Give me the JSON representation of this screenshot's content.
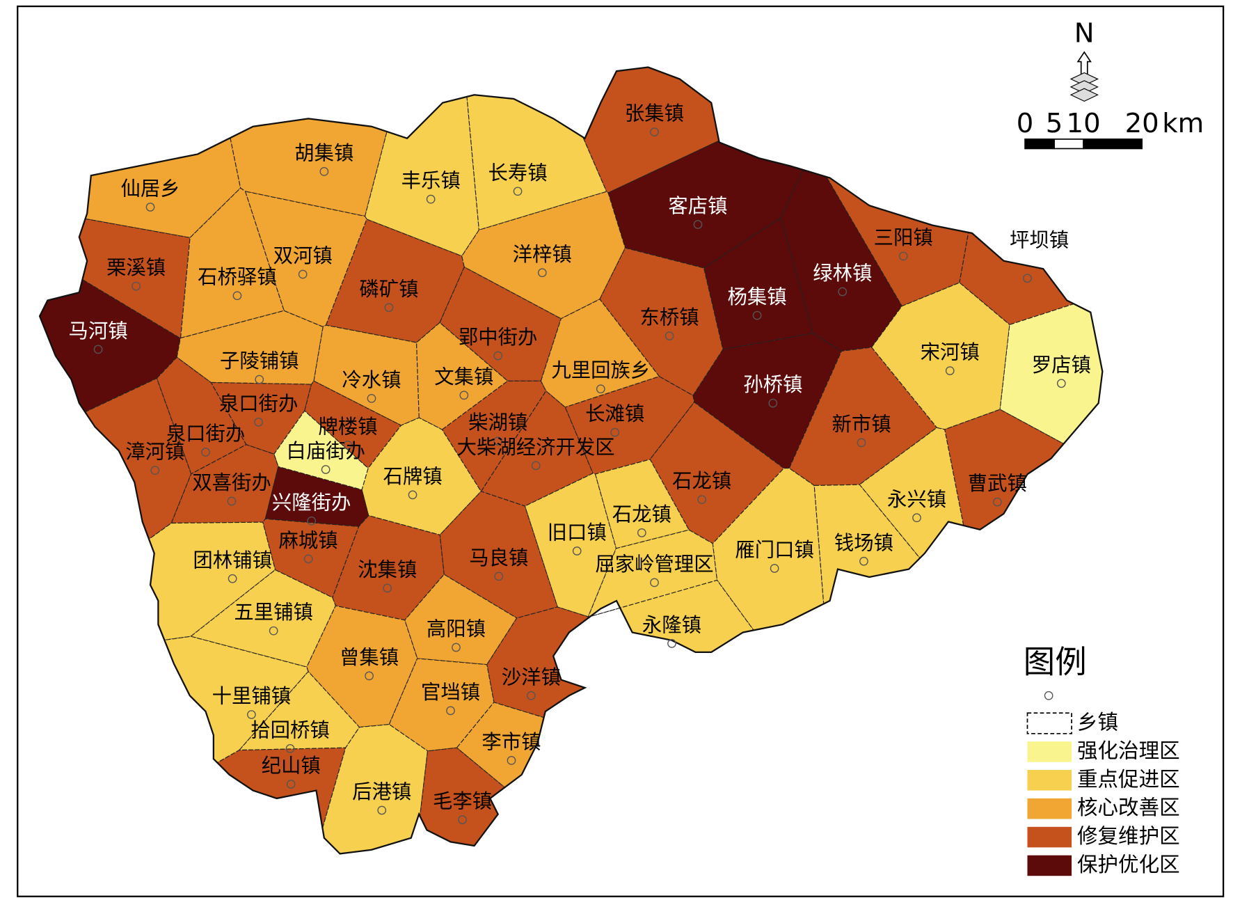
{
  "towns": [
    {
      "name": "仙居乡",
      "zone": "核心改善区"
    },
    {
      "name": "胡集镇",
      "zone": "核心改善区"
    },
    {
      "name": "丰乐镇",
      "zone": "重点促进区"
    },
    {
      "name": "长寿镇",
      "zone": "重点促进区"
    },
    {
      "name": "张集镇",
      "zone": "修复维护区"
    },
    {
      "name": "客店镇",
      "zone": "保护优化区"
    },
    {
      "name": "三阳镇",
      "zone": "修复维护区"
    },
    {
      "name": "坪坝镇",
      "zone": "修复维护区"
    },
    {
      "name": "栗溪镇",
      "zone": "修复维护区"
    },
    {
      "name": "双河镇",
      "zone": "核心改善区"
    },
    {
      "name": "石桥驿镇",
      "zone": "核心改善区"
    },
    {
      "name": "磷矿镇",
      "zone": "修复维护区"
    },
    {
      "name": "洋梓镇",
      "zone": "核心改善区"
    },
    {
      "name": "绿林镇",
      "zone": "保护优化区"
    },
    {
      "name": "杨集镇",
      "zone": "保护优化区"
    },
    {
      "name": "马河镇",
      "zone": "保护优化区"
    },
    {
      "name": "东桥镇",
      "zone": "修复维护区"
    },
    {
      "name": "郢中街办",
      "zone": "修复维护区"
    },
    {
      "name": "子陵铺镇",
      "zone": "核心改善区"
    },
    {
      "name": "冷水镇",
      "zone": "核心改善区"
    },
    {
      "name": "文集镇",
      "zone": "核心改善区"
    },
    {
      "name": "九里回族乡",
      "zone": "核心改善区"
    },
    {
      "name": "宋河镇",
      "zone": "重点促进区"
    },
    {
      "name": "罗店镇",
      "zone": "强化治理区"
    },
    {
      "name": "孙桥镇",
      "zone": "保护优化区"
    },
    {
      "name": "泉口街办",
      "zone": "修复维护区"
    },
    {
      "name": "牌楼镇",
      "zone": "修复维护区"
    },
    {
      "name": "柴湖镇",
      "zone": "修复维护区"
    },
    {
      "name": "长滩镇",
      "zone": "修复维护区"
    },
    {
      "name": "新市镇",
      "zone": "修复维护区"
    },
    {
      "name": "泉口街办",
      "zone": "修复维护区"
    },
    {
      "name": "漳河镇",
      "zone": "修复维护区"
    },
    {
      "name": "白庙街办",
      "zone": "强化治理区"
    },
    {
      "name": "大柴湖经济开发区",
      "zone": "修复维护区"
    },
    {
      "name": "双喜街办",
      "zone": "修复维护区"
    },
    {
      "name": "石牌镇",
      "zone": "重点促进区"
    },
    {
      "name": "石龙镇",
      "zone": "修复维护区"
    },
    {
      "name": "曹武镇",
      "zone": "修复维护区"
    },
    {
      "name": "永兴镇",
      "zone": "重点促进区"
    },
    {
      "name": "兴隆街办",
      "zone": "保护优化区"
    },
    {
      "name": "石龙镇",
      "zone": "重点促进区"
    },
    {
      "name": "旧口镇",
      "zone": "重点促进区"
    },
    {
      "name": "麻城镇",
      "zone": "修复维护区"
    },
    {
      "name": "团林铺镇",
      "zone": "重点促进区"
    },
    {
      "name": "马良镇",
      "zone": "修复维护区"
    },
    {
      "name": "沈集镇",
      "zone": "修复维护区"
    },
    {
      "name": "屈家岭管理区",
      "zone": "重点促进区"
    },
    {
      "name": "雁门口镇",
      "zone": "重点促进区"
    },
    {
      "name": "钱场镇",
      "zone": "重点促进区"
    },
    {
      "name": "五里铺镇",
      "zone": "重点促进区"
    },
    {
      "name": "永隆镇",
      "zone": "重点促进区"
    },
    {
      "name": "高阳镇",
      "zone": "核心改善区"
    },
    {
      "name": "曾集镇",
      "zone": "核心改善区"
    },
    {
      "name": "沙洋镇",
      "zone": "修复维护区"
    },
    {
      "name": "十里铺镇",
      "zone": "重点促进区"
    },
    {
      "name": "官垱镇",
      "zone": "核心改善区"
    },
    {
      "name": "拾回桥镇",
      "zone": "重点促进区"
    },
    {
      "name": "李市镇",
      "zone": "核心改善区"
    },
    {
      "name": "纪山镇",
      "zone": "修复维护区"
    },
    {
      "name": "后港镇",
      "zone": "重点促进区"
    },
    {
      "name": "毛李镇",
      "zone": "修复维护区"
    }
  ],
  "north": "N",
  "scale": {
    "ticks": [
      0,
      5,
      10,
      20
    ],
    "unit": "km"
  },
  "legend": {
    "title": "图例",
    "items": [
      {
        "label": "乡镇"
      },
      {
        "label": "强化治理区",
        "color": "#f9f48e"
      },
      {
        "label": "重点促进区",
        "color": "#f6d04e"
      },
      {
        "label": "核心改善区",
        "color": "#f1a532"
      },
      {
        "label": "修复维护区",
        "color": "#c5511c"
      },
      {
        "label": "保护优化区",
        "color": "#5c0a0a"
      }
    ]
  }
}
